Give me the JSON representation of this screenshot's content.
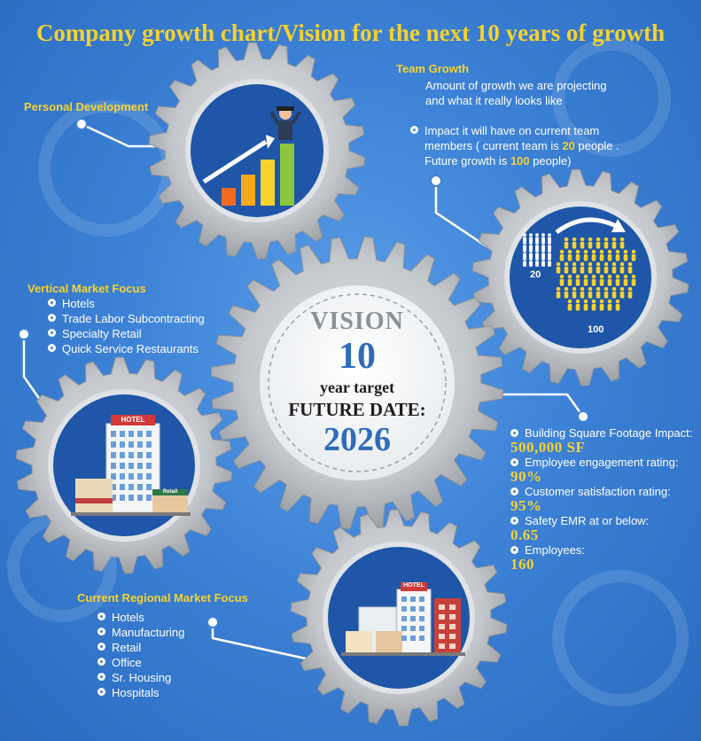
{
  "title": "Company growth chart/Vision for the next 10 years of growth",
  "colors": {
    "accent": "#f6d22d",
    "background": "#3d82d6",
    "gear": "#b9bcc0",
    "inner": "#1f56a8"
  },
  "personal_development": {
    "heading": "Personal Development"
  },
  "team_growth": {
    "heading": "Team Growth",
    "line1": "Amount of growth we are projecting",
    "line2": "and what it really looks like",
    "impact_line1": "Impact it will have on current team",
    "impact_line2_pre": "members ( current team is ",
    "current_team": "20",
    "impact_line2_post": " people .",
    "impact_line3_pre": "Future growth is ",
    "future_team": "100",
    "impact_line3_post": " people)",
    "label_small": "20",
    "label_large": "100"
  },
  "vertical_market": {
    "heading": "Vertical Market Focus",
    "items": [
      "Hotels",
      "Trade Labor Subcontracting",
      "Specialty Retail",
      "Quick Service Restaurants"
    ]
  },
  "vision": {
    "word": "VISION",
    "years": "10",
    "subtitle": "year target",
    "future_label": "FUTURE DATE:",
    "year": "2026"
  },
  "metrics": [
    {
      "label": "Building Square Footage Impact:",
      "value": "500,000 SF"
    },
    {
      "label": "Employee engagement rating:",
      "value": "90%"
    },
    {
      "label": "Customer satisfaction rating:",
      "value": "95%"
    },
    {
      "label": "Safety EMR at or below:",
      "value": "0.65"
    },
    {
      "label": "Employees:",
      "value": "160"
    }
  ],
  "regional_market": {
    "heading": "Current Regional Market Focus",
    "items": [
      "Hotels",
      "Manufacturing",
      "Retail",
      "Office",
      "Sr. Housing",
      "Hospitals"
    ]
  },
  "signs": {
    "hotel": "HOTEL",
    "retail": "Retail"
  }
}
